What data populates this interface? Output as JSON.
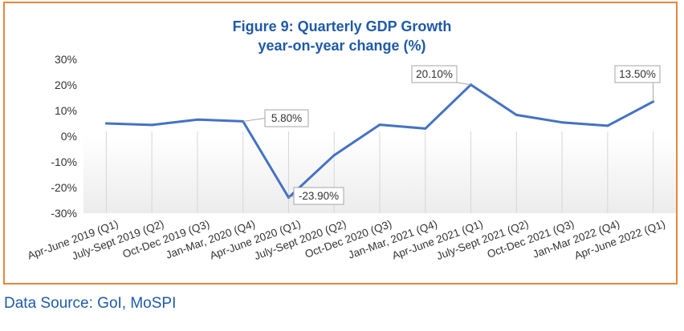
{
  "chart_data": {
    "type": "line",
    "title": "Figure 9: Quarterly GDP Growth",
    "subtitle": "year-on-year change (%)",
    "xlabel": "",
    "ylabel": "",
    "categories": [
      "Apr-June 2019 (Q1)",
      "July-Sept 2019 (Q2)",
      "Oct-Dec 2019 (Q3)",
      "Jan-Mar, 2020 (Q4)",
      "Apr-June 2020 (Q1)",
      "July-Sept 2020 (Q2)",
      "Oct-Dec 2020 (Q3)",
      "Jan-Mar, 2021 (Q4)",
      "Apr-June 2021 (Q1)",
      "July-Sept 2021 (Q2)",
      "Oct-Dec 2021 (Q3)",
      "Jan-Mar 2022 (Q4)",
      "Apr-June 2022 (Q1)"
    ],
    "series": [
      {
        "values": [
          5.0,
          4.4,
          6.5,
          5.8,
          -23.9,
          -7.4,
          4.5,
          3.0,
          20.1,
          8.3,
          5.4,
          4.1,
          13.5
        ],
        "color": "#4472c4"
      }
    ],
    "ylim": [
      -30,
      30
    ],
    "yticks": [
      30,
      20,
      10,
      0,
      -10,
      -20,
      -30
    ],
    "ytick_labels": [
      "30%",
      "20%",
      "10%",
      "0%",
      "-10%",
      "-20%",
      "-30%"
    ],
    "annotations": [
      {
        "index": 3,
        "label": "5.80%"
      },
      {
        "index": 4,
        "label": "-23.90%"
      },
      {
        "index": 8,
        "label": "20.10%"
      },
      {
        "index": 12,
        "label": "13.50%"
      }
    ],
    "grid": "vertical",
    "legend": "none"
  },
  "source": "Data Source: GoI, MoSPI",
  "colors": {
    "frame": "#e8863a",
    "title": "#1f5aa8",
    "line": "#4472c4",
    "source": "#1f5aa8"
  }
}
